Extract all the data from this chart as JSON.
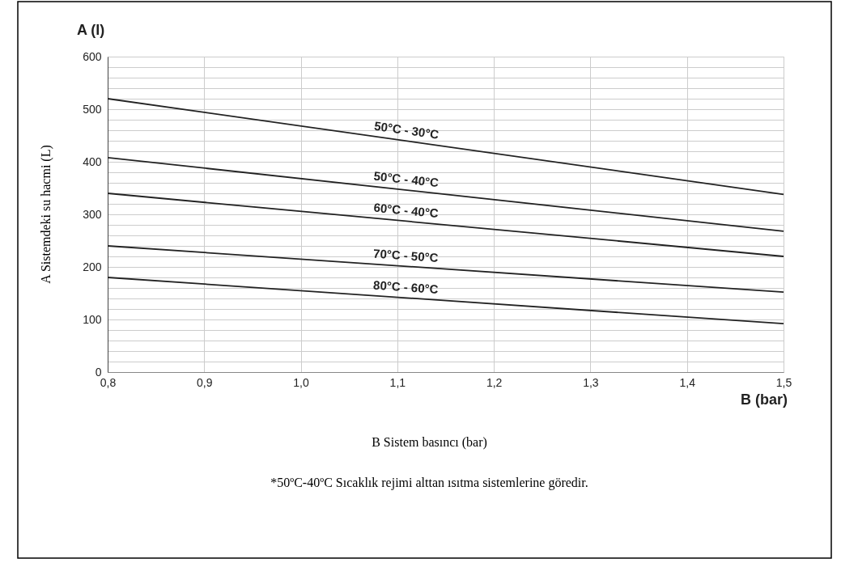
{
  "chart_data": {
    "type": "line",
    "xlabel": "B (bar)",
    "ylabel": "A (l)",
    "x": [
      0.8,
      1.5
    ],
    "series": [
      {
        "name": "50°C - 30°C",
        "color": "#222222",
        "values": [
          520,
          338
        ]
      },
      {
        "name": "50°C - 40°C",
        "color": "#222222",
        "values": [
          408,
          268
        ]
      },
      {
        "name": "60°C - 40°C",
        "color": "#222222",
        "values": [
          340,
          220
        ]
      },
      {
        "name": "70°C - 50°C",
        "color": "#222222",
        "values": [
          240,
          152
        ]
      },
      {
        "name": "80°C - 60°C",
        "color": "#222222",
        "values": [
          180,
          92
        ]
      }
    ],
    "xlim": [
      0.8,
      1.5
    ],
    "xticks": [
      {
        "value": 0.8,
        "label": "0,8"
      },
      {
        "value": 0.9,
        "label": "0,9"
      },
      {
        "value": 1.0,
        "label": "1,0"
      },
      {
        "value": 1.1,
        "label": "1,1"
      },
      {
        "value": 1.2,
        "label": "1,2"
      },
      {
        "value": 1.3,
        "label": "1,3"
      },
      {
        "value": 1.4,
        "label": "1,4"
      },
      {
        "value": 1.5,
        "label": "1,5"
      }
    ],
    "ylim": [
      0,
      600
    ],
    "yticks": [
      0,
      {
        "value": 20,
        "label": null
      },
      {
        "value": 40,
        "label": null
      },
      {
        "value": 60,
        "label": null
      },
      {
        "value": 80,
        "label": null
      },
      100,
      {
        "value": 120,
        "label": null
      },
      {
        "value": 140,
        "label": null
      },
      {
        "value": 160,
        "label": null
      },
      {
        "value": 180,
        "label": null
      },
      200,
      {
        "value": 220,
        "label": null
      },
      {
        "value": 240,
        "label": null
      },
      {
        "value": 260,
        "label": null
      },
      {
        "value": 280,
        "label": null
      },
      300,
      {
        "value": 320,
        "label": null
      },
      {
        "value": 340,
        "label": null
      },
      {
        "value": 360,
        "label": null
      },
      {
        "value": 380,
        "label": null
      },
      400,
      {
        "value": 420,
        "label": null
      },
      {
        "value": 440,
        "label": null
      },
      {
        "value": 460,
        "label": null
      },
      {
        "value": 480,
        "label": null
      },
      500,
      {
        "value": 520,
        "label": null
      },
      {
        "value": 540,
        "label": null
      },
      {
        "value": 560,
        "label": null
      },
      {
        "value": 580,
        "label": null
      },
      600
    ],
    "grid": true,
    "legend": false,
    "marker": "none",
    "line_style": "solid",
    "annotations": [
      "A Sistemdeki su hacmi  (L)",
      "B Sistem basıncı (bar)",
      "*50ºC-40ºC Sıcaklık rejimi alttan ısıtma sistemlerine göredir."
    ]
  }
}
